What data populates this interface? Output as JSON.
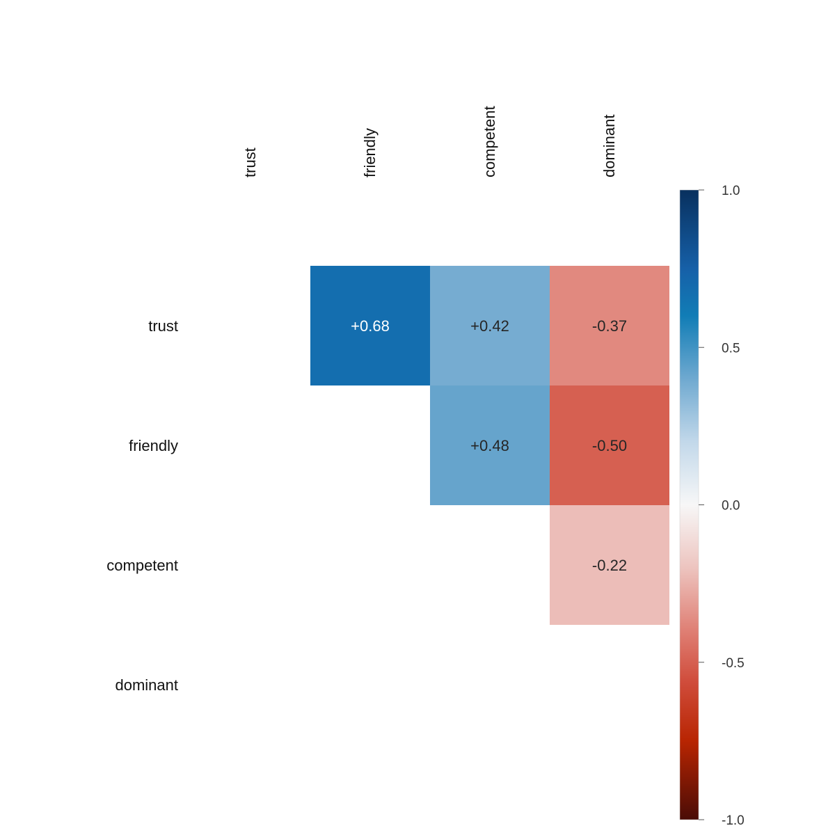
{
  "chart_data": {
    "type": "heatmap",
    "title": "",
    "variables": [
      "trust",
      "friendly",
      "competent",
      "dominant"
    ],
    "matrix_shape": "upper-triangle",
    "cells": [
      {
        "row": "trust",
        "col": "friendly",
        "value": 0.68,
        "label": "+0.68"
      },
      {
        "row": "trust",
        "col": "competent",
        "value": 0.42,
        "label": "+0.42"
      },
      {
        "row": "trust",
        "col": "dominant",
        "value": -0.37,
        "label": "-0.37"
      },
      {
        "row": "friendly",
        "col": "competent",
        "value": 0.48,
        "label": "+0.48"
      },
      {
        "row": "friendly",
        "col": "dominant",
        "value": -0.5,
        "label": "-0.50"
      },
      {
        "row": "competent",
        "col": "dominant",
        "value": -0.22,
        "label": "-0.22"
      }
    ],
    "colorbar": {
      "range": [
        -1.0,
        1.0
      ],
      "ticks": [
        1.0,
        0.5,
        0.0,
        -0.5,
        -1.0
      ],
      "tick_labels": [
        "1.0",
        "0.5",
        "0.0",
        "-0.5",
        "-1.0"
      ],
      "colormap": "red-white-blue (RdBu)",
      "low_color": "#4a0c06",
      "mid_color": "#f7f7f7",
      "high_color": "#08305e"
    },
    "grid": false,
    "legend": "colorbar-right"
  }
}
